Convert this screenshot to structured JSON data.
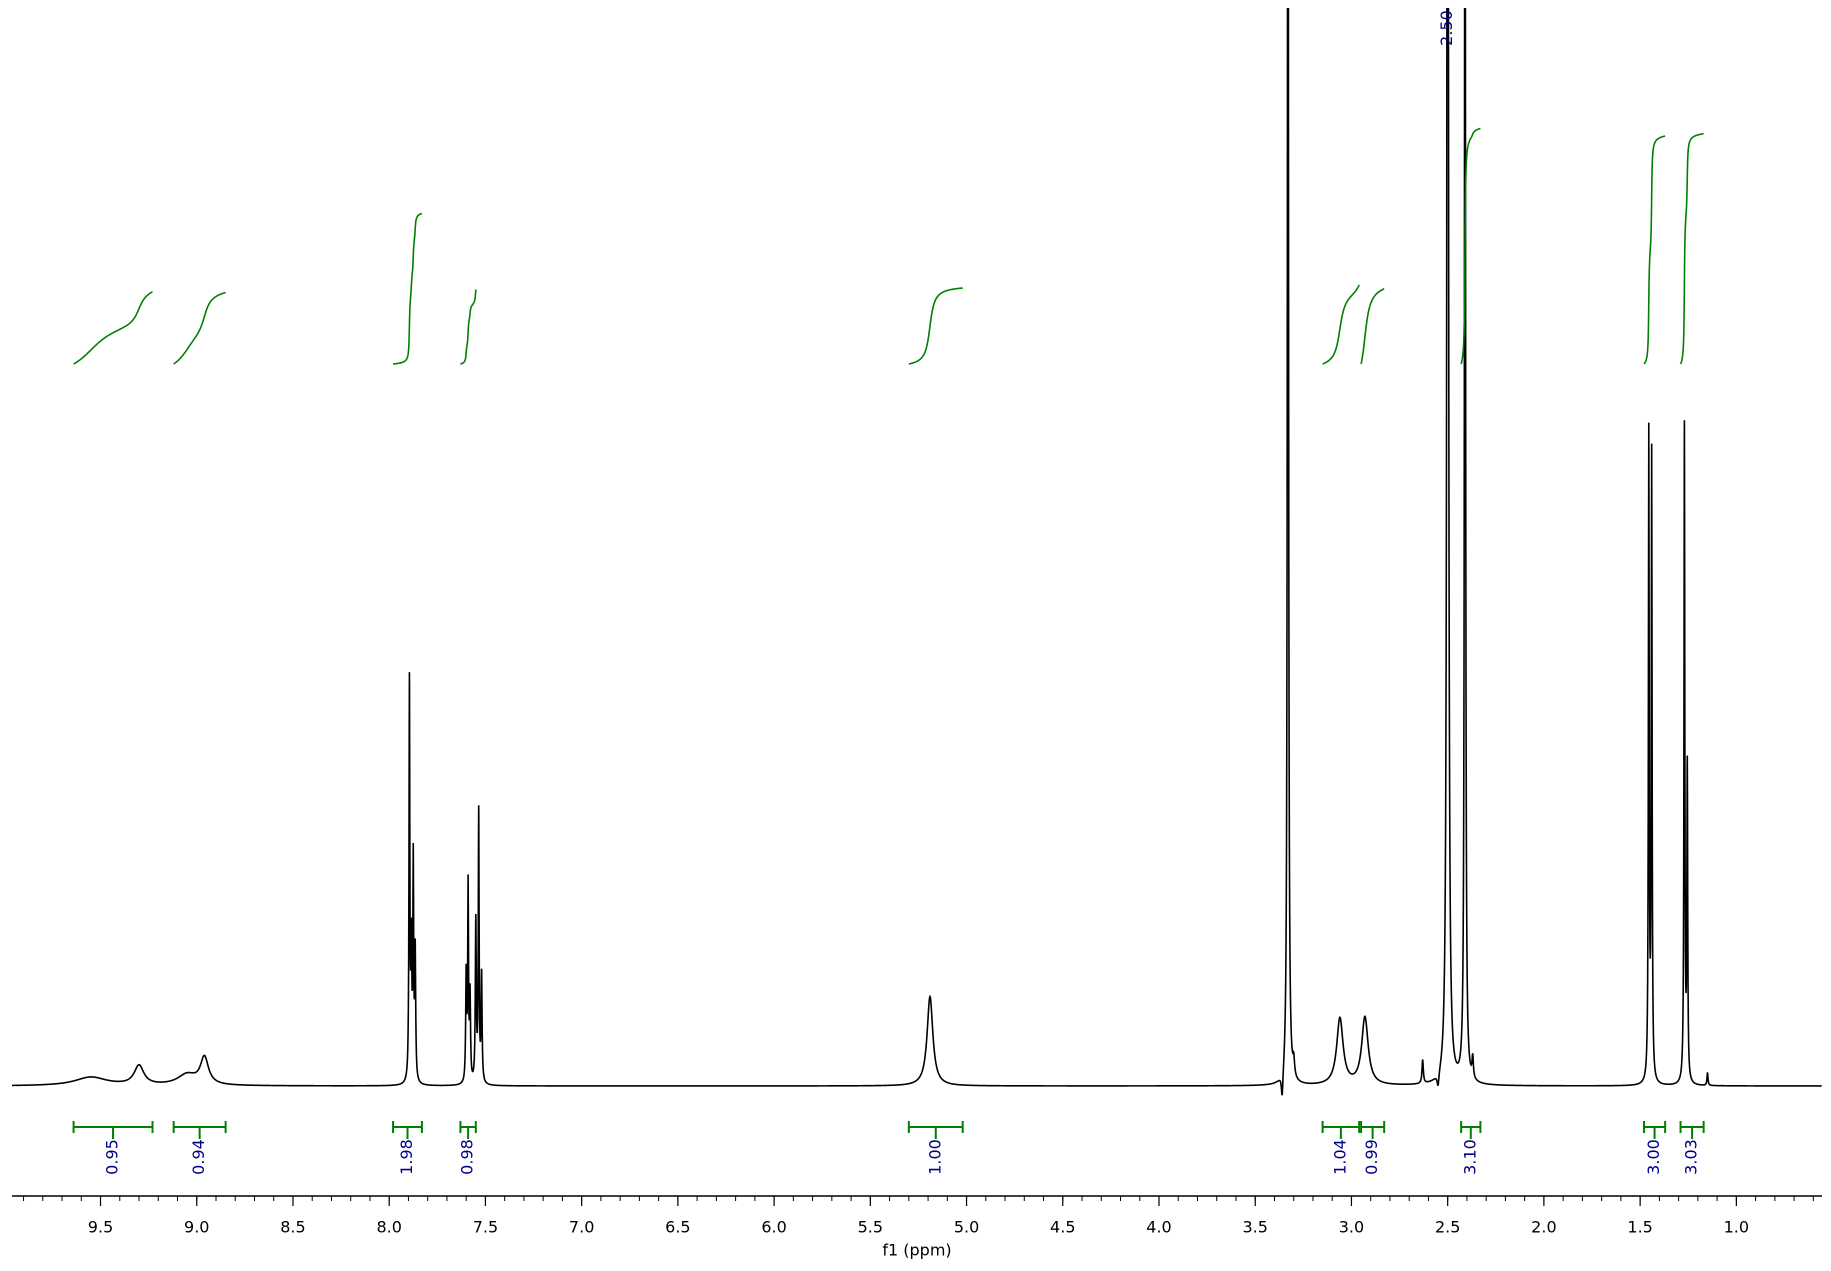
{
  "chart_data": {
    "type": "nmr",
    "x_label": "f1 (ppm)",
    "xlim": [
      9.96,
      0.555
    ],
    "ylim": [
      0,
      100
    ],
    "xminor": 0.1,
    "xticks": [
      9.5,
      {
        "value": 9,
        "label": "9.0"
      },
      8.5,
      {
        "value": 8,
        "label": "8.0"
      },
      7.5,
      {
        "value": 7,
        "label": "7.0"
      },
      6.5,
      {
        "value": 6,
        "label": "6.0"
      },
      5.5,
      {
        "value": 5,
        "label": "5.0"
      },
      4.5,
      {
        "value": 4,
        "label": "4.0"
      },
      3.5,
      {
        "value": 3,
        "label": "3.0"
      },
      2.5,
      {
        "value": 2,
        "label": "2.0"
      },
      1.5,
      {
        "value": 1,
        "label": "1.0"
      }
    ],
    "color": "#000000",
    "integral_color": "#008000",
    "label_color": "#00008b",
    "peaks": {
      "x": [
        9.55,
        9.3,
        9.05,
        8.96,
        7.895,
        7.885,
        7.875,
        7.865,
        7.6,
        7.59,
        7.58,
        7.55,
        7.535,
        7.52,
        5.19,
        3.36,
        3.33,
        3.3,
        3.06,
        2.93,
        2.63,
        2.55,
        2.5,
        2.41,
        2.37,
        1.455,
        1.44,
        1.27,
        1.255,
        1.15
      ],
      "heights": [
        0.8,
        1.8,
        1.0,
        2.5,
        37,
        12,
        20,
        12,
        10,
        18,
        8,
        15,
        25,
        10,
        8.3,
        -2.5,
        160,
        1.5,
        6.2,
        6.3,
        2.2,
        -1.3,
        200,
        150,
        2,
        60,
        58,
        61,
        29,
        1.2
      ],
      "widths": [
        0.1,
        0.03,
        0.06,
        0.025,
        0.0025,
        0.003,
        0.0025,
        0.003,
        0.003,
        0.0025,
        0.003,
        0.003,
        0.0025,
        0.003,
        0.018,
        0.005,
        0.003,
        0.005,
        0.02,
        0.02,
        0.004,
        0.006,
        0.004,
        0.003,
        0.004,
        0.0025,
        0.0025,
        0.0025,
        0.0025,
        0.003
      ]
    },
    "integrals": {
      "ranges": [
        [
          9.64,
          9.23
        ],
        [
          9.12,
          8.85
        ],
        [
          7.98,
          7.83
        ],
        [
          7.63,
          7.55
        ],
        [
          5.3,
          5.02
        ],
        [
          3.15,
          2.96
        ],
        [
          2.95,
          2.83
        ],
        [
          2.43,
          2.33
        ],
        [
          1.48,
          1.37
        ],
        [
          1.29,
          1.17
        ]
      ],
      "values": [
        0.95,
        0.94,
        1.98,
        0.98,
        1.0,
        1.04,
        0.99,
        3.1,
        3.0,
        3.03
      ],
      "value_labels": [
        "0.95",
        "0.94",
        "1.98",
        "0.98",
        "1.00",
        "1.04",
        "0.99",
        "3.10",
        "3.00",
        "3.03"
      ]
    },
    "peak_labels": {
      "values": [
        2.5
      ],
      "value_labels": [
        "2.50"
      ]
    }
  }
}
